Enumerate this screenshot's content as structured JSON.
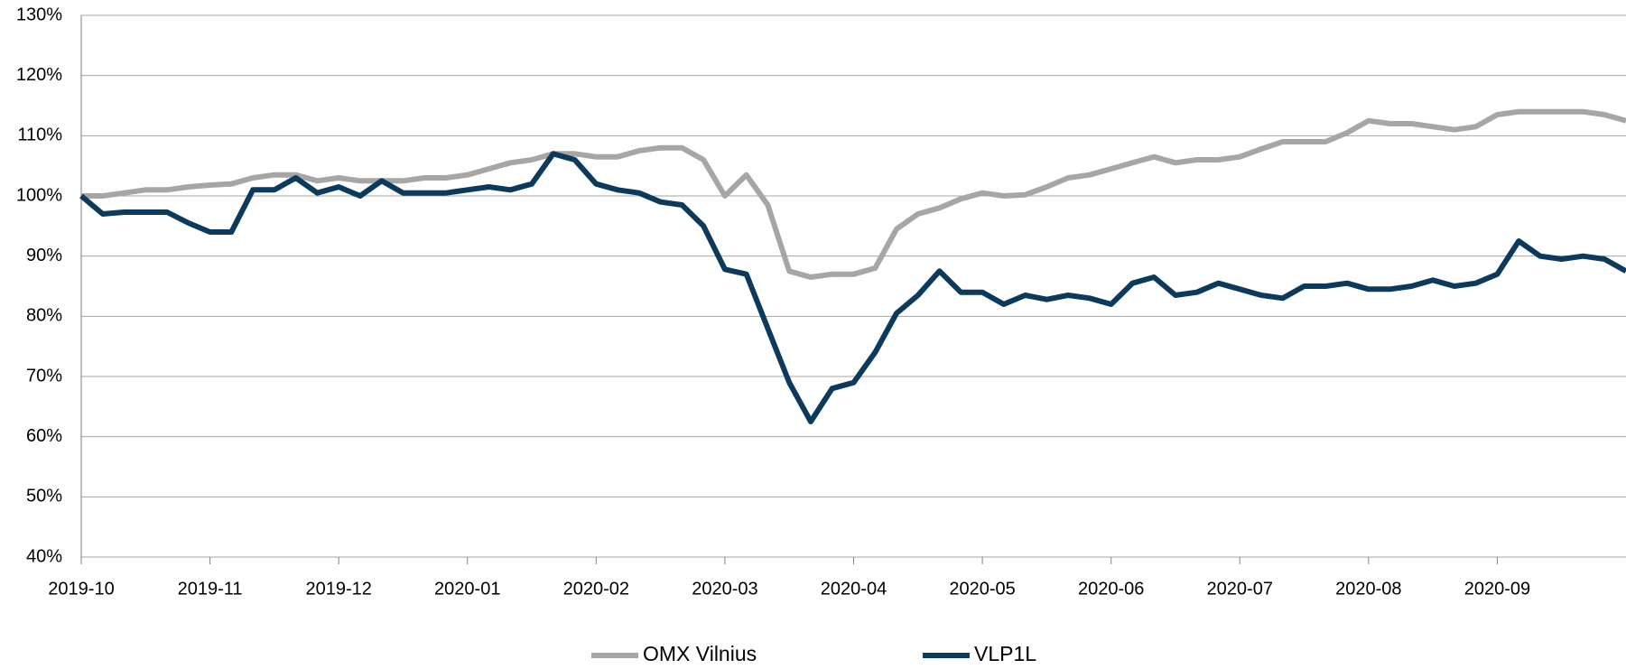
{
  "chart_data": {
    "type": "line",
    "xticks": [
      "2019-10",
      "2019-11",
      "2019-12",
      "2020-01",
      "2020-02",
      "2020-03",
      "2020-04",
      "2020-05",
      "2020-06",
      "2020-07",
      "2020-08",
      "2020-09"
    ],
    "ylim": [
      40,
      130
    ],
    "yticks": [
      {
        "value": 40,
        "label": "40%"
      },
      {
        "value": 50,
        "label": "50%"
      },
      {
        "value": 60,
        "label": "60%"
      },
      {
        "value": 70,
        "label": "70%"
      },
      {
        "value": 80,
        "label": "80%"
      },
      {
        "value": 90,
        "label": "90%"
      },
      {
        "value": 100,
        "label": "100%"
      },
      {
        "value": 110,
        "label": "110%"
      },
      {
        "value": 120,
        "label": "120%"
      },
      {
        "value": 130,
        "label": "130%"
      }
    ],
    "grid": true,
    "legend": "bottom",
    "series": [
      {
        "name": "OMX Vilnius",
        "color": "#a6a6a6",
        "values": [
          100,
          100,
          100.5,
          101,
          101,
          101.5,
          101.8,
          102,
          103,
          103.5,
          103.5,
          102.5,
          103,
          102.5,
          102.5,
          102.5,
          103,
          103,
          103.5,
          104.5,
          105.5,
          106,
          107,
          107,
          106.5,
          106.5,
          107.5,
          108,
          108,
          106,
          100,
          103.5,
          98.5,
          87.5,
          86.5,
          87,
          87,
          88,
          94.5,
          97,
          98,
          99.5,
          100.5,
          100,
          100.2,
          101.5,
          103,
          103.5,
          104.5,
          105.5,
          106.5,
          105.5,
          106,
          106,
          106.5,
          107.8,
          109,
          109,
          109,
          110.5,
          112.5,
          112,
          112,
          111.5,
          111,
          111.5,
          113.5,
          114,
          114,
          114,
          114,
          113.5,
          112.5
        ]
      },
      {
        "name": "VLP1L",
        "color": "#0b3a5c",
        "values": [
          100,
          97,
          97.3,
          97.3,
          97.3,
          95.5,
          94,
          94,
          101,
          101,
          103,
          100.5,
          101.5,
          100,
          102.5,
          100.5,
          100.5,
          100.5,
          101,
          101.5,
          101,
          102,
          107,
          106,
          102,
          101,
          100.5,
          99,
          98.5,
          95,
          87.8,
          87,
          78,
          69,
          62.5,
          68,
          69,
          74,
          80.5,
          83.5,
          87.5,
          84,
          84,
          82,
          83.5,
          82.8,
          83.5,
          83,
          82,
          85.5,
          86.5,
          83.5,
          84,
          85.5,
          84.5,
          83.5,
          83,
          85,
          85,
          85.5,
          84.5,
          84.5,
          85,
          86,
          85,
          85.5,
          87,
          92.5,
          90,
          89.5,
          90,
          89.5,
          87.5
        ]
      }
    ]
  }
}
